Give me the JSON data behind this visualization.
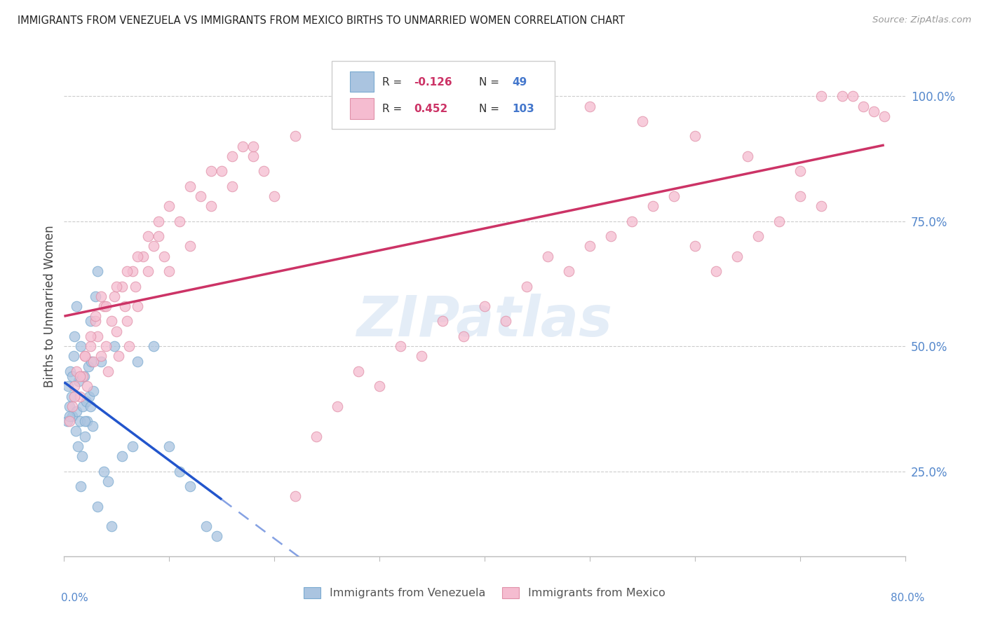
{
  "title": "IMMIGRANTS FROM VENEZUELA VS IMMIGRANTS FROM MEXICO BIRTHS TO UNMARRIED WOMEN CORRELATION CHART",
  "source": "Source: ZipAtlas.com",
  "ylabel": "Births to Unmarried Women",
  "right_ytick_labels": [
    "25.0%",
    "50.0%",
    "75.0%",
    "100.0%"
  ],
  "right_ytick_vals": [
    25,
    50,
    75,
    100
  ],
  "watermark": "ZIPatlas",
  "legend_blue_r": "-0.126",
  "legend_blue_n": "49",
  "legend_pink_r": "0.452",
  "legend_pink_n": "103",
  "legend_label_blue": "Immigrants from Venezuela",
  "legend_label_pink": "Immigrants from Mexico",
  "blue_scatter_color": "#aac4e0",
  "blue_scatter_edge": "#7aaad0",
  "pink_scatter_color": "#f5bcd0",
  "pink_scatter_edge": "#e090a8",
  "trend_blue": "#2255cc",
  "trend_pink": "#cc3366",
  "background": "#ffffff",
  "grid_color": "#cccccc",
  "title_color": "#222222",
  "source_color": "#999999",
  "axis_label_color": "#444444",
  "right_tick_color": "#5588cc",
  "bottom_label_color": "#5588cc",
  "r_value_color": "#cc3366",
  "n_value_color": "#4477cc",
  "xlim": [
    0,
    80
  ],
  "ylim": [
    8,
    108
  ],
  "venezuela_x": [
    0.3,
    0.4,
    0.5,
    0.6,
    0.7,
    0.8,
    0.9,
    1.0,
    1.1,
    1.2,
    1.3,
    1.4,
    1.5,
    1.6,
    1.7,
    1.8,
    1.9,
    2.0,
    2.1,
    2.2,
    2.3,
    2.4,
    2.5,
    2.6,
    2.7,
    2.8,
    3.0,
    3.2,
    3.5,
    3.8,
    4.2,
    4.8,
    5.5,
    6.5,
    7.0,
    8.5,
    10.0,
    11.0,
    12.0,
    13.5,
    14.5,
    0.5,
    0.8,
    1.2,
    1.6,
    2.0,
    2.5,
    3.2,
    4.5
  ],
  "venezuela_y": [
    35,
    42,
    38,
    45,
    40,
    36,
    48,
    52,
    33,
    37,
    30,
    43,
    35,
    50,
    28,
    38,
    44,
    32,
    39,
    35,
    46,
    40,
    55,
    47,
    34,
    41,
    60,
    65,
    47,
    25,
    23,
    50,
    28,
    30,
    47,
    50,
    30,
    25,
    22,
    14,
    12,
    36,
    44,
    58,
    22,
    35,
    38,
    18,
    14
  ],
  "mexico_x": [
    0.5,
    0.8,
    1.0,
    1.2,
    1.5,
    1.8,
    2.0,
    2.2,
    2.5,
    2.8,
    3.0,
    3.2,
    3.5,
    3.8,
    4.0,
    4.2,
    4.5,
    4.8,
    5.0,
    5.2,
    5.5,
    5.8,
    6.0,
    6.2,
    6.5,
    6.8,
    7.0,
    7.5,
    8.0,
    8.5,
    9.0,
    9.5,
    10.0,
    11.0,
    12.0,
    13.0,
    14.0,
    15.0,
    16.0,
    17.0,
    18.0,
    19.0,
    20.0,
    22.0,
    24.0,
    26.0,
    28.0,
    30.0,
    32.0,
    34.0,
    36.0,
    38.0,
    40.0,
    42.0,
    44.0,
    46.0,
    48.0,
    50.0,
    52.0,
    54.0,
    56.0,
    58.0,
    60.0,
    62.0,
    64.0,
    66.0,
    68.0,
    70.0,
    72.0,
    1.0,
    1.5,
    2.0,
    2.5,
    3.0,
    3.5,
    4.0,
    5.0,
    6.0,
    7.0,
    8.0,
    9.0,
    10.0,
    12.0,
    14.0,
    16.0,
    18.0,
    22.0,
    26.0,
    30.0,
    35.0,
    40.0,
    45.0,
    50.0,
    55.0,
    60.0,
    65.0,
    70.0,
    72.0,
    74.0,
    75.0,
    76.0,
    77.0,
    78.0
  ],
  "mexico_y": [
    35,
    38,
    42,
    45,
    40,
    44,
    48,
    42,
    50,
    47,
    55,
    52,
    48,
    58,
    50,
    45,
    55,
    60,
    53,
    48,
    62,
    58,
    55,
    50,
    65,
    62,
    58,
    68,
    65,
    70,
    72,
    68,
    65,
    75,
    70,
    80,
    78,
    85,
    82,
    90,
    88,
    85,
    80,
    20,
    32,
    38,
    45,
    42,
    50,
    48,
    55,
    52,
    58,
    55,
    62,
    68,
    65,
    70,
    72,
    75,
    78,
    80,
    70,
    65,
    68,
    72,
    75,
    80,
    78,
    40,
    44,
    48,
    52,
    56,
    60,
    58,
    62,
    65,
    68,
    72,
    75,
    78,
    82,
    85,
    88,
    90,
    92,
    95,
    96,
    98,
    100,
    100,
    98,
    95,
    92,
    88,
    85,
    100,
    100,
    100,
    98,
    97,
    96
  ]
}
